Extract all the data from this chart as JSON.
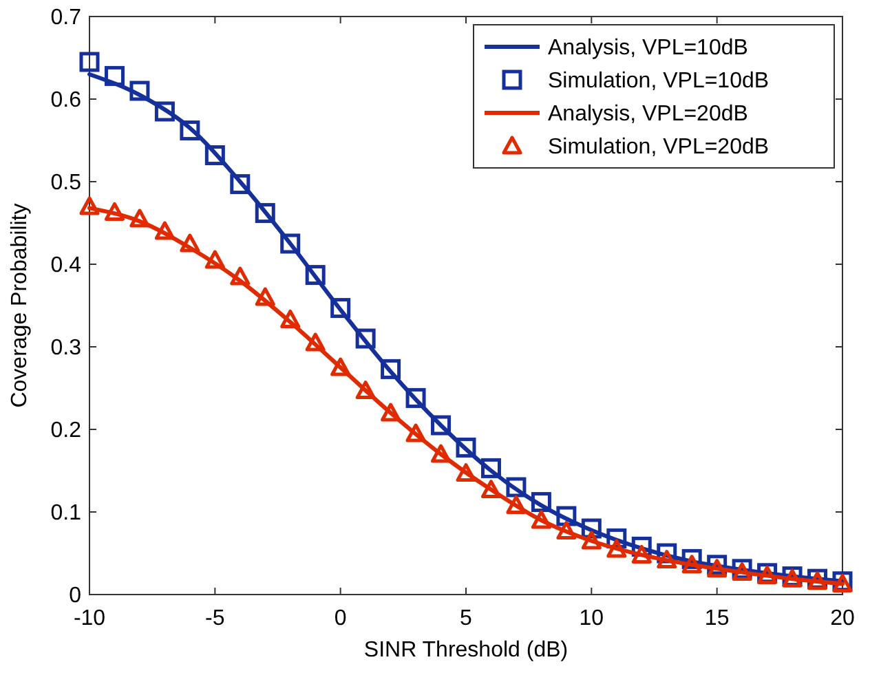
{
  "chart_data": {
    "type": "line",
    "xlabel": "SINR Threshold (dB)",
    "ylabel": "Coverage Probability",
    "xlim": [
      -10,
      20
    ],
    "xticks": [
      -10,
      -5,
      0,
      5,
      10,
      15,
      20
    ],
    "ylim": [
      0,
      0.7
    ],
    "yticks": [
      0,
      0.1,
      0.2,
      0.3,
      0.4,
      0.5,
      0.6,
      0.7
    ],
    "grid": false,
    "legend": "top right",
    "series": [
      {
        "name": "Analysis, VPL=10dB",
        "marker": "none",
        "color": "#15309a",
        "x": [
          -10,
          -8,
          -6,
          -4,
          -2,
          0,
          2,
          4,
          6,
          8,
          10,
          12,
          14,
          16,
          18,
          20
        ],
        "values": [
          0.63,
          0.605,
          0.565,
          0.5,
          0.425,
          0.345,
          0.27,
          0.205,
          0.15,
          0.108,
          0.078,
          0.056,
          0.04,
          0.03,
          0.022,
          0.016
        ]
      },
      {
        "name": "Simulation, VPL=10dB",
        "type": "scatter",
        "marker": "square",
        "color": "#15309a",
        "x": [
          -10,
          -9,
          -8,
          -7,
          -6,
          -5,
          -4,
          -3,
          -2,
          -1,
          0,
          1,
          2,
          3,
          4,
          5,
          6,
          7,
          8,
          9,
          10,
          11,
          12,
          13,
          14,
          15,
          16,
          17,
          18,
          19,
          20
        ],
        "values": [
          0.645,
          0.628,
          0.61,
          0.585,
          0.562,
          0.532,
          0.497,
          0.462,
          0.425,
          0.387,
          0.347,
          0.31,
          0.273,
          0.238,
          0.205,
          0.178,
          0.153,
          0.13,
          0.112,
          0.095,
          0.08,
          0.068,
          0.058,
          0.05,
          0.043,
          0.036,
          0.031,
          0.026,
          0.022,
          0.019,
          0.016
        ]
      },
      {
        "name": "Analysis, VPL=20dB",
        "marker": "none",
        "color": "#e02a00",
        "x": [
          -10,
          -8,
          -6,
          -4,
          -2,
          0,
          2,
          4,
          6,
          8,
          10,
          12,
          14,
          16,
          18,
          20
        ],
        "values": [
          0.468,
          0.452,
          0.42,
          0.38,
          0.33,
          0.275,
          0.22,
          0.17,
          0.127,
          0.09,
          0.065,
          0.048,
          0.036,
          0.027,
          0.019,
          0.013
        ]
      },
      {
        "name": "Simulation, VPL=20dB",
        "type": "scatter",
        "marker": "triangle",
        "color": "#e02a00",
        "x": [
          -10,
          -9,
          -8,
          -7,
          -6,
          -5,
          -4,
          -3,
          -2,
          -1,
          0,
          1,
          2,
          3,
          4,
          5,
          6,
          7,
          8,
          9,
          10,
          11,
          12,
          13,
          14,
          15,
          16,
          17,
          18,
          19,
          20
        ],
        "values": [
          0.47,
          0.463,
          0.455,
          0.44,
          0.425,
          0.405,
          0.385,
          0.36,
          0.333,
          0.305,
          0.275,
          0.247,
          0.22,
          0.195,
          0.17,
          0.147,
          0.127,
          0.108,
          0.09,
          0.077,
          0.065,
          0.055,
          0.048,
          0.042,
          0.036,
          0.031,
          0.027,
          0.023,
          0.019,
          0.016,
          0.013
        ]
      }
    ]
  }
}
